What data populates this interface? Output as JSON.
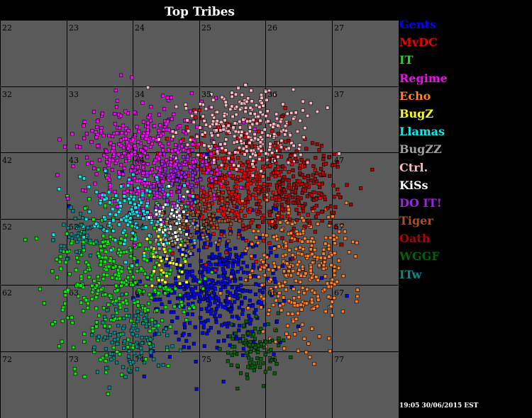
{
  "title": "Top Tribes",
  "timestamp": "19:05 30/06/2015 EST",
  "colors": {
    "background": "#000000",
    "grid_fill": "#5a5a5a",
    "grid_line": "#000000",
    "grid_label": "#000000"
  },
  "grid_labels": [
    [
      "22",
      "23",
      "24",
      "25",
      "26",
      "27"
    ],
    [
      "32",
      "33",
      "34",
      "35",
      "36",
      "37"
    ],
    [
      "42",
      "43",
      "44",
      "45",
      "46",
      "47"
    ],
    [
      "52",
      "53",
      "54",
      "55",
      "56",
      "57"
    ],
    [
      "62",
      "63",
      "64",
      "65",
      "66",
      "67"
    ],
    [
      "72",
      "73",
      "74",
      "75",
      "76",
      "77"
    ]
  ],
  "tribes": [
    {
      "name": "Gents",
      "color": "#0000ff"
    },
    {
      "name": "MvDC",
      "color": "#ee0000"
    },
    {
      "name": "IT",
      "color": "#00ee00"
    },
    {
      "name": "Regime",
      "color": "#ff00ff"
    },
    {
      "name": "Echo",
      "color": "#ff7f24"
    },
    {
      "name": "BugZ",
      "color": "#ffff00"
    },
    {
      "name": "Llamas",
      "color": "#00eeee"
    },
    {
      "name": "BugZZ",
      "color": "#a0a0a0"
    },
    {
      "name": "Ctrl.",
      "color": "#ffb6c1"
    },
    {
      "name": "KiSs",
      "color": "#ffffff"
    },
    {
      "name": "DO IT!",
      "color": "#a020f0"
    },
    {
      "name": "Tiger",
      "color": "#a0522d"
    },
    {
      "name": "Oath",
      "color": "#b00000"
    },
    {
      "name": "WGGF",
      "color": "#006400"
    },
    {
      "name": "ITw",
      "color": "#008b8b"
    }
  ]
}
